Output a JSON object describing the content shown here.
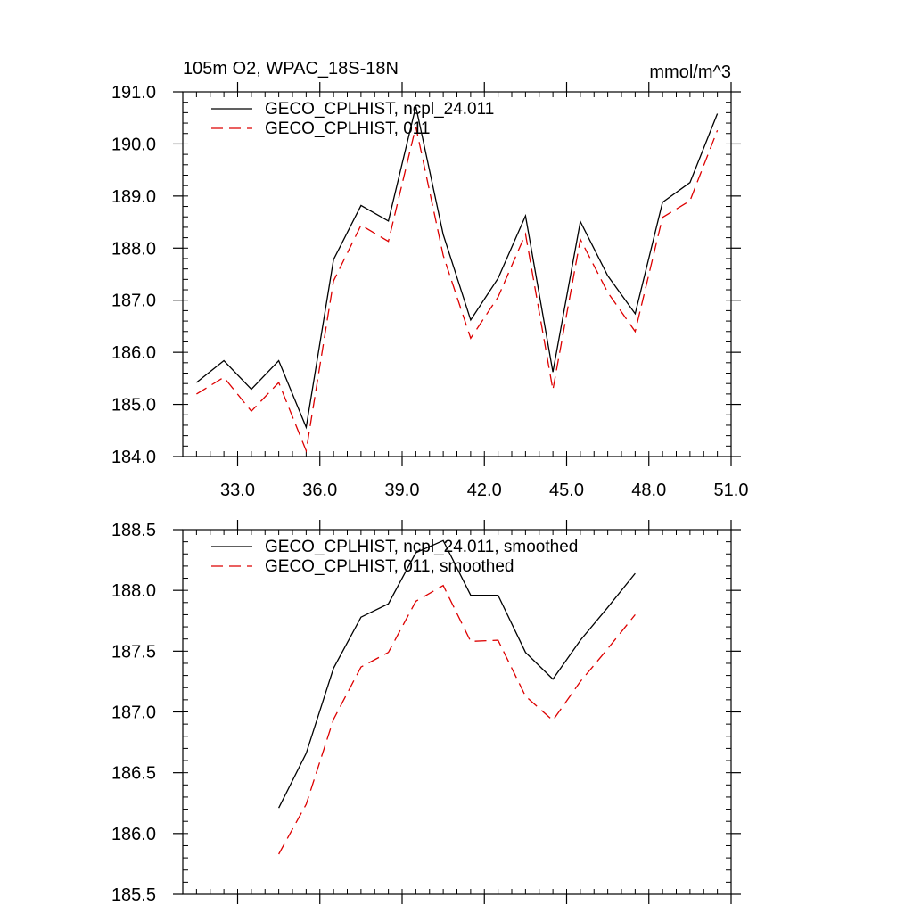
{
  "colors": {
    "series_main": "#000000",
    "series_alt": "#dd0000",
    "axis": "#000000",
    "background": "#ffffff"
  },
  "chart_data": [
    {
      "type": "line",
      "title_left": "105m O2, WPAC_18S-18N",
      "title_right": "mmol/m^3",
      "xlabel": "",
      "ylabel": "",
      "xlim": [
        31.0,
        51.0
      ],
      "ylim": [
        184.0,
        191.0
      ],
      "x_ticks": [
        33.0,
        36.0,
        39.0,
        42.0,
        45.0,
        48.0,
        51.0
      ],
      "x_tick_labels": [
        "33.0",
        "36.0",
        "39.0",
        "42.0",
        "45.0",
        "48.0",
        "51.0"
      ],
      "y_ticks": [
        184.0,
        185.0,
        186.0,
        187.0,
        188.0,
        189.0,
        190.0,
        191.0
      ],
      "y_tick_labels": [
        "184.0",
        "185.0",
        "186.0",
        "187.0",
        "188.0",
        "189.0",
        "190.0",
        "191.0"
      ],
      "legend_position": "top-left",
      "x": [
        31.5,
        32.5,
        33.5,
        34.5,
        35.5,
        36.5,
        37.5,
        38.5,
        39.5,
        40.5,
        41.5,
        42.5,
        43.5,
        44.5,
        45.5,
        46.5,
        47.5,
        48.5,
        49.5,
        50.5
      ],
      "series": [
        {
          "name": "GECO_CPLHIST, ncpl_24.011",
          "style": "solid",
          "color": "#000000",
          "values": [
            185.42,
            185.84,
            185.29,
            185.84,
            184.56,
            187.78,
            188.82,
            188.52,
            190.72,
            188.26,
            186.62,
            187.42,
            188.62,
            185.62,
            188.51,
            187.47,
            186.74,
            188.88,
            189.26,
            190.58
          ]
        },
        {
          "name": "GECO_CPLHIST, 011",
          "style": "dashed",
          "color": "#dd0000",
          "values": [
            185.2,
            185.52,
            184.87,
            185.42,
            184.11,
            187.37,
            188.44,
            188.13,
            190.33,
            187.86,
            186.27,
            187.06,
            188.27,
            185.28,
            188.17,
            187.15,
            186.4,
            188.59,
            188.91,
            190.26
          ]
        }
      ]
    },
    {
      "type": "line",
      "title_left": "",
      "title_right": "",
      "xlabel": "",
      "ylabel": "",
      "xlim": [
        31.0,
        51.0
      ],
      "ylim": [
        185.5,
        188.5
      ],
      "x_ticks": [
        33.0,
        36.0,
        39.0,
        42.0,
        45.0,
        48.0,
        51.0
      ],
      "x_tick_labels": [],
      "y_ticks": [
        185.5,
        186.0,
        186.5,
        187.0,
        187.5,
        188.0,
        188.5
      ],
      "y_tick_labels": [
        "185.5",
        "186.0",
        "186.5",
        "187.0",
        "187.5",
        "188.0",
        "188.5"
      ],
      "legend_position": "top-left",
      "x": [
        34.5,
        35.5,
        36.5,
        37.5,
        38.5,
        39.5,
        40.5,
        41.5,
        42.5,
        43.5,
        44.5,
        45.5,
        46.5,
        47.5
      ],
      "series": [
        {
          "name": "GECO_CPLHIST, ncpl_24.011, smoothed",
          "style": "solid",
          "color": "#000000",
          "values": [
            186.21,
            186.66,
            187.36,
            187.78,
            187.89,
            188.31,
            188.41,
            187.96,
            187.96,
            187.49,
            187.27,
            187.59,
            187.86,
            188.14
          ]
        },
        {
          "name": "GECO_CPLHIST, 011, smoothed",
          "style": "dashed",
          "color": "#dd0000",
          "values": [
            185.83,
            186.24,
            186.94,
            187.37,
            187.49,
            187.91,
            188.04,
            187.58,
            187.59,
            187.13,
            186.93,
            187.25,
            187.52,
            187.8
          ]
        }
      ]
    }
  ]
}
